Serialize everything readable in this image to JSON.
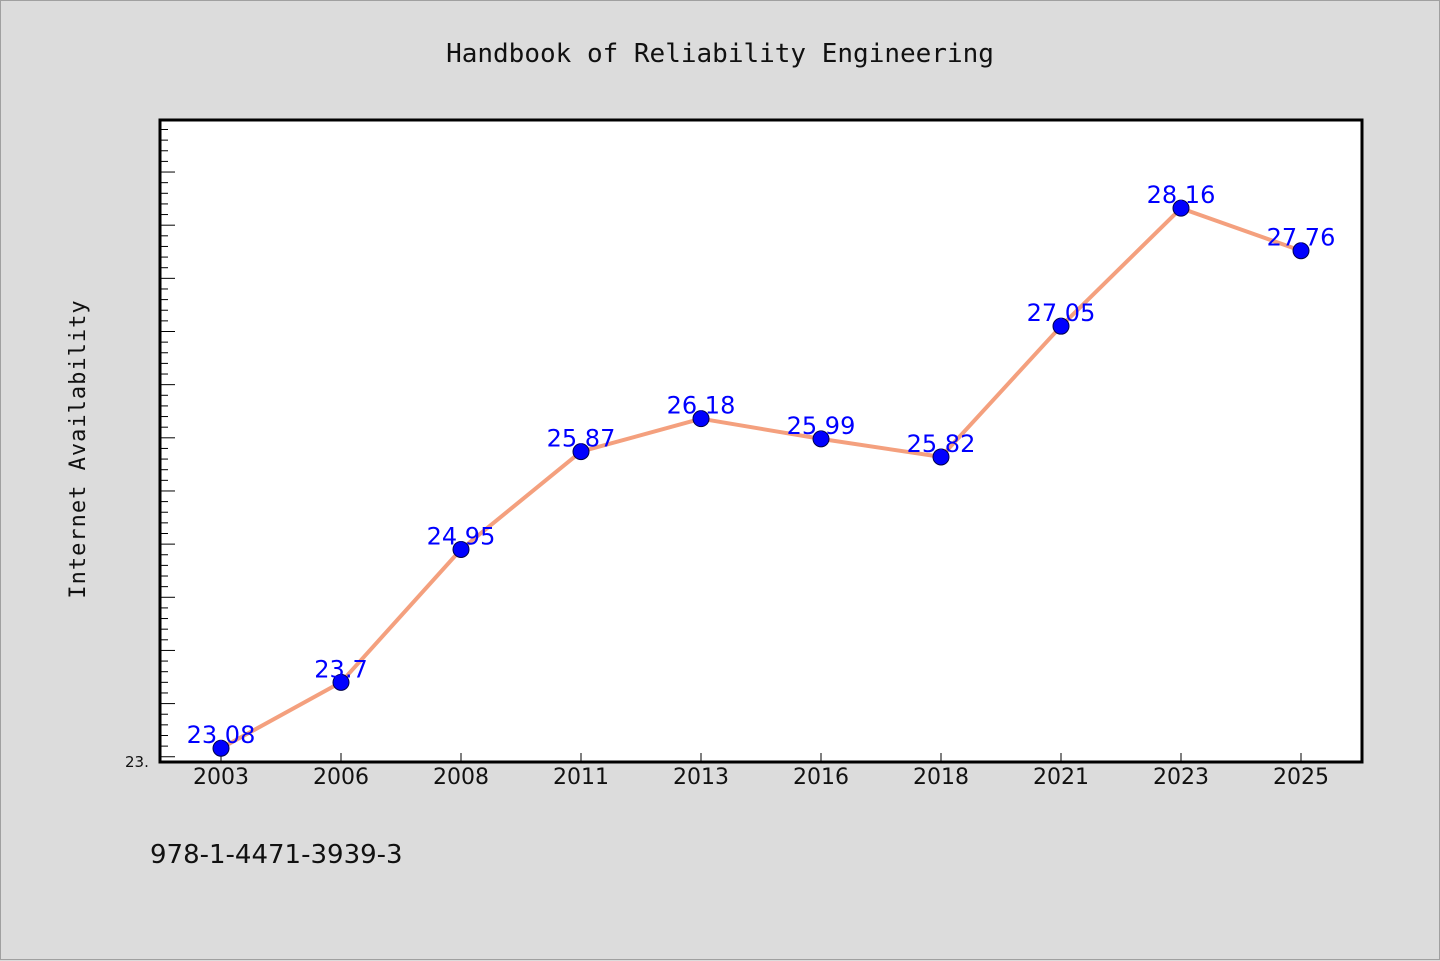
{
  "chart_data": {
    "type": "line",
    "title": "Handbook of Reliability Engineering",
    "xlabel": "",
    "ylabel": "Internet Availability",
    "categories": [
      "2003",
      "2006",
      "2008",
      "2011",
      "2013",
      "2016",
      "2018",
      "2021",
      "2023",
      "2025"
    ],
    "series": [
      {
        "values": [
          23.08,
          23.7,
          24.95,
          25.87,
          26.18,
          25.99,
          25.82,
          27.05,
          28.16,
          27.76
        ],
        "labels": [
          "23.08",
          "23.7",
          "24.95",
          "25.87",
          "26.18",
          "25.99",
          "25.82",
          "27.05",
          "28.16",
          "27.76"
        ],
        "line_color": "#f4a07e",
        "marker_color": "#0000ff"
      }
    ],
    "ylim": [
      22.96,
      28.98
    ],
    "ytick_label": "23.",
    "grid": false,
    "plot_background": "#ffffff"
  },
  "footer_text": "978-1-4471-3939-3"
}
